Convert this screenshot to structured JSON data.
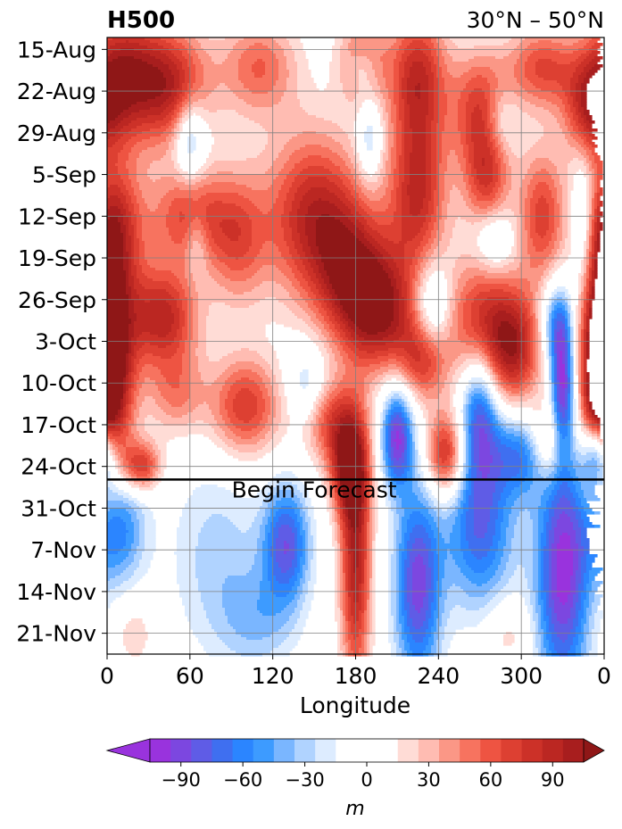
{
  "chart_data": {
    "type": "heatmap",
    "title": "H500",
    "subtitle": "30°N – 50°N",
    "xlabel": "Longitude",
    "ylabel": "",
    "x_ticks": [
      "0",
      "60",
      "120",
      "180",
      "240",
      "300",
      "0"
    ],
    "x_tick_values": [
      0,
      60,
      120,
      180,
      240,
      300,
      360
    ],
    "xlim": [
      0,
      360
    ],
    "y_ticks": [
      "15-Aug",
      "22-Aug",
      "29-Aug",
      "5-Sep",
      "12-Sep",
      "19-Sep",
      "26-Sep",
      "3-Oct",
      "10-Oct",
      "17-Oct",
      "24-Oct",
      "31-Oct",
      "7-Nov",
      "14-Nov",
      "21-Nov"
    ],
    "y_tick_days": [
      0,
      7,
      14,
      21,
      28,
      35,
      42,
      49,
      56,
      63,
      70,
      77,
      84,
      91,
      98
    ],
    "y_range_days": [
      -2,
      101.5
    ],
    "y_inverted": true,
    "grid": true,
    "annotation": {
      "text": "Begin Forecast",
      "day": 72.2
    },
    "colorbar": {
      "label": "m",
      "levels": [
        -105,
        -95,
        -85,
        -75,
        -65,
        -55,
        -45,
        -35,
        -25,
        -15,
        15,
        25,
        35,
        45,
        55,
        65,
        75,
        85,
        95,
        105
      ],
      "colors": [
        "#9933dd",
        "#7c47e0",
        "#5f5ce6",
        "#3f6ff0",
        "#2b85ff",
        "#3d9bff",
        "#7ab6ff",
        "#b0d3ff",
        "#ddecff",
        "#ffffff",
        "#ffdcd6",
        "#ffbcb2",
        "#fb9786",
        "#f7735f",
        "#ee5442",
        "#dd4032",
        "#cc3128",
        "#bb2722",
        "#a81e1e"
      ],
      "extend_low_color": "#9933dd",
      "extend_high_color": "#8f1717",
      "ticks": [
        "−90",
        "−60",
        "−30",
        "0",
        "30",
        "60",
        "90"
      ],
      "tick_values": [
        -90,
        -60,
        -30,
        0,
        30,
        60,
        90
      ],
      "placement": "bottom"
    },
    "anomaly_sources": [
      {
        "lon": 10,
        "day": 4,
        "amp": 85,
        "sx": 18,
        "sy": 8
      },
      {
        "lon": 45,
        "day": 6,
        "amp": 90,
        "sx": 20,
        "sy": 7
      },
      {
        "lon": 110,
        "day": 3,
        "amp": 55,
        "sx": 20,
        "sy": 6
      },
      {
        "lon": 185,
        "day": 2,
        "amp": 70,
        "sx": 12,
        "sy": 5
      },
      {
        "lon": 225,
        "day": 4,
        "amp": 80,
        "sx": 15,
        "sy": 8
      },
      {
        "lon": 270,
        "day": 10,
        "amp": 70,
        "sx": 15,
        "sy": 7
      },
      {
        "lon": 315,
        "day": 3,
        "amp": 65,
        "sx": 18,
        "sy": 5
      },
      {
        "lon": 350,
        "day": 10,
        "amp": 70,
        "sx": 14,
        "sy": 6
      },
      {
        "lon": 60,
        "day": 15,
        "amp": -55,
        "sx": 8,
        "sy": 5
      },
      {
        "lon": 185,
        "day": 3,
        "amp": -45,
        "sx": 8,
        "sy": 3
      },
      {
        "lon": 190,
        "day": 15,
        "amp": -40,
        "sx": 6,
        "sy": 5
      },
      {
        "lon": 285,
        "day": 12,
        "amp": -30,
        "sx": 8,
        "sy": 4
      },
      {
        "lon": 5,
        "day": 30,
        "amp": 85,
        "sx": 15,
        "sy": 8
      },
      {
        "lon": 60,
        "day": 28,
        "amp": 70,
        "sx": 20,
        "sy": 6
      },
      {
        "lon": 95,
        "day": 32,
        "amp": 55,
        "sx": 15,
        "sy": 8
      },
      {
        "lon": 150,
        "day": 28,
        "amp": 90,
        "sx": 25,
        "sy": 10
      },
      {
        "lon": 180,
        "day": 38,
        "amp": 80,
        "sx": 20,
        "sy": 8
      },
      {
        "lon": 225,
        "day": 24,
        "amp": 85,
        "sx": 15,
        "sy": 10
      },
      {
        "lon": 275,
        "day": 22,
        "amp": 65,
        "sx": 12,
        "sy": 6
      },
      {
        "lon": 315,
        "day": 28,
        "amp": 70,
        "sx": 12,
        "sy": 8
      },
      {
        "lon": 345,
        "day": 30,
        "amp": -50,
        "sx": 6,
        "sy": 8
      },
      {
        "lon": 280,
        "day": 32,
        "amp": -35,
        "sx": 10,
        "sy": 4
      },
      {
        "lon": 65,
        "day": 32,
        "amp": -30,
        "sx": 6,
        "sy": 4
      },
      {
        "lon": 40,
        "day": 45,
        "amp": 90,
        "sx": 18,
        "sy": 6
      },
      {
        "lon": 5,
        "day": 53,
        "amp": 95,
        "sx": 12,
        "sy": 12
      },
      {
        "lon": 200,
        "day": 45,
        "amp": 80,
        "sx": 20,
        "sy": 7
      },
      {
        "lon": 230,
        "day": 52,
        "amp": 70,
        "sx": 12,
        "sy": 5
      },
      {
        "lon": 270,
        "day": 46,
        "amp": 75,
        "sx": 18,
        "sy": 8
      },
      {
        "lon": 295,
        "day": 50,
        "amp": 85,
        "sx": 15,
        "sy": 7
      },
      {
        "lon": 355,
        "day": 55,
        "amp": 95,
        "sx": 10,
        "sy": 14
      },
      {
        "lon": 235,
        "day": 44,
        "amp": -55,
        "sx": 10,
        "sy": 6
      },
      {
        "lon": 325,
        "day": 46,
        "amp": -60,
        "sx": 8,
        "sy": 5
      },
      {
        "lon": 330,
        "day": 57,
        "amp": -95,
        "sx": 6,
        "sy": 8
      },
      {
        "lon": 270,
        "day": 60,
        "amp": -80,
        "sx": 10,
        "sy": 8
      },
      {
        "lon": 210,
        "day": 65,
        "amp": -95,
        "sx": 8,
        "sy": 6
      },
      {
        "lon": 145,
        "day": 57,
        "amp": -40,
        "sx": 10,
        "sy": 5
      },
      {
        "lon": 100,
        "day": 60,
        "amp": 75,
        "sx": 18,
        "sy": 6
      },
      {
        "lon": 160,
        "day": 62,
        "amp": 60,
        "sx": 15,
        "sy": 5
      },
      {
        "lon": 50,
        "day": 58,
        "amp": 45,
        "sx": 15,
        "sy": 5
      },
      {
        "lon": 175,
        "day": 70,
        "amp": 95,
        "sx": 10,
        "sy": 6
      },
      {
        "lon": 245,
        "day": 68,
        "amp": 90,
        "sx": 10,
        "sy": 5
      },
      {
        "lon": 320,
        "day": 66,
        "amp": 60,
        "sx": 10,
        "sy": 5
      },
      {
        "lon": 25,
        "day": 70,
        "amp": 75,
        "sx": 10,
        "sy": 3
      },
      {
        "lon": 355,
        "day": 68,
        "amp": -95,
        "sx": 8,
        "sy": 4
      },
      {
        "lon": 300,
        "day": 68,
        "amp": -60,
        "sx": 15,
        "sy": 5
      },
      {
        "lon": 5,
        "day": 80,
        "amp": -75,
        "sx": 15,
        "sy": 7
      },
      {
        "lon": 80,
        "day": 85,
        "amp": -30,
        "sx": 25,
        "sy": 12
      },
      {
        "lon": 130,
        "day": 83,
        "amp": -80,
        "sx": 12,
        "sy": 7
      },
      {
        "lon": 180,
        "day": 86,
        "amp": 95,
        "sx": 8,
        "sy": 15
      },
      {
        "lon": 225,
        "day": 90,
        "amp": -90,
        "sx": 12,
        "sy": 12
      },
      {
        "lon": 270,
        "day": 80,
        "amp": -75,
        "sx": 18,
        "sy": 10
      },
      {
        "lon": 330,
        "day": 88,
        "amp": -100,
        "sx": 14,
        "sy": 15
      },
      {
        "lon": 110,
        "day": 96,
        "amp": -30,
        "sx": 20,
        "sy": 6
      },
      {
        "lon": 20,
        "day": 98,
        "amp": 25,
        "sx": 10,
        "sy": 4
      },
      {
        "lon": 290,
        "day": 98,
        "amp": 25,
        "sx": 12,
        "sy": 4
      }
    ]
  }
}
